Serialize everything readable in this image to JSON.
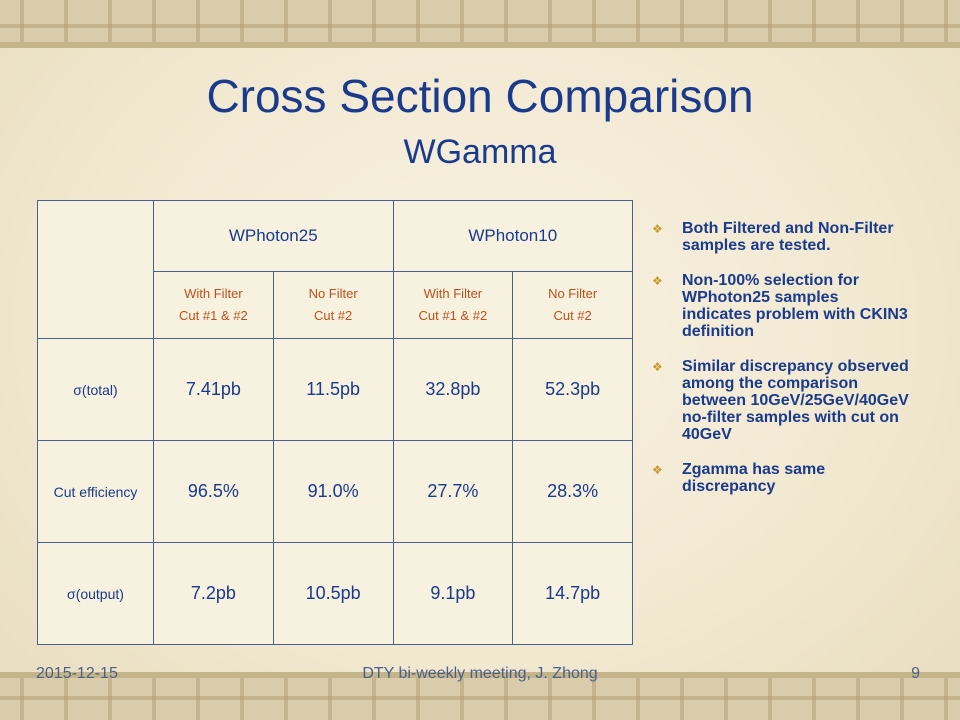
{
  "slide": {
    "title": "Cross Section Comparison",
    "subtitle": "WGamma"
  },
  "table": {
    "groups": [
      "WPhoton25",
      "WPhoton10"
    ],
    "sub_headers": [
      {
        "line1": "With Filter",
        "line2": "Cut #1 & #2"
      },
      {
        "line1": "No Filter",
        "line2": "Cut #2"
      },
      {
        "line1": "With Filter",
        "line2": "Cut #1 & #2"
      },
      {
        "line1": "No Filter",
        "line2": "Cut #2"
      }
    ],
    "rows": [
      {
        "label": "σ(total)",
        "values": [
          "7.41pb",
          "11.5pb",
          "32.8pb",
          "52.3pb"
        ]
      },
      {
        "label": "Cut efficiency",
        "values": [
          "96.5%",
          "91.0%",
          "27.7%",
          "28.3%"
        ]
      },
      {
        "label": "σ(output)",
        "values": [
          "7.2pb",
          "10.5pb",
          "9.1pb",
          "14.7pb"
        ]
      }
    ]
  },
  "bullets": [
    "Both Filtered and Non-Filter samples are tested.",
    "Non-100% selection for WPhoton25 samples indicates problem with CKIN3 definition",
    "Similar discrepancy observed among the comparison between 10GeV/25GeV/40GeV no-filter samples with cut on 40GeV",
    "Zgamma has same discrepancy"
  ],
  "footer": {
    "date": "2015-12-15",
    "center": "DTY bi-weekly meeting, J. Zhong",
    "page": "9"
  },
  "colors": {
    "title": "#1a3a8c",
    "sub_header": "#c0501a",
    "value_light": "#2a6ad0",
    "bullet_mark": "#c89a2a"
  },
  "icons": {
    "bullet": "diamond-bullet-icon"
  }
}
